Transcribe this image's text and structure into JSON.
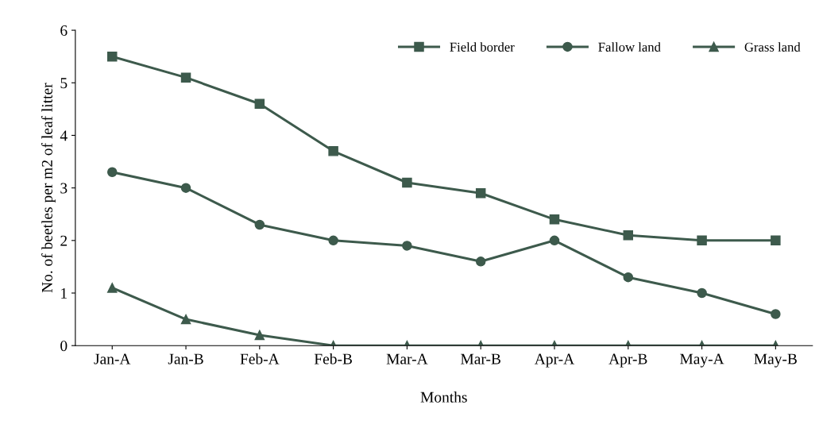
{
  "chart_data": {
    "type": "line",
    "xlabel": "Months",
    "ylabel": "No. of beetles per m2 of leaf litter",
    "categories": [
      "Jan-A",
      "Jan-B",
      "Feb-A",
      "Feb-B",
      "Mar-A",
      "Mar-B",
      "Apr-A",
      "Apr-B",
      "May-A",
      "May-B"
    ],
    "series": [
      {
        "name": "Field border",
        "color": "#3d5a4c",
        "marker": "square",
        "values": [
          5.5,
          5.1,
          4.6,
          3.7,
          3.1,
          2.9,
          2.4,
          2.1,
          2.0,
          2.0
        ]
      },
      {
        "name": "Fallow land",
        "color": "#3d5a4c",
        "marker": "circle",
        "values": [
          3.3,
          3.0,
          2.3,
          2.0,
          1.9,
          1.6,
          2.0,
          1.3,
          1.0,
          0.6
        ]
      },
      {
        "name": "Grass land",
        "color": "#3d5a4c",
        "marker": "triangle",
        "values": [
          1.1,
          0.5,
          0.2,
          0,
          0,
          0,
          0,
          0,
          0,
          0
        ]
      }
    ],
    "ylim": [
      0,
      6
    ],
    "yticks": [
      0,
      1,
      2,
      3,
      4,
      5,
      6
    ],
    "grid": false,
    "legend": "top right",
    "line_style": "solid"
  }
}
